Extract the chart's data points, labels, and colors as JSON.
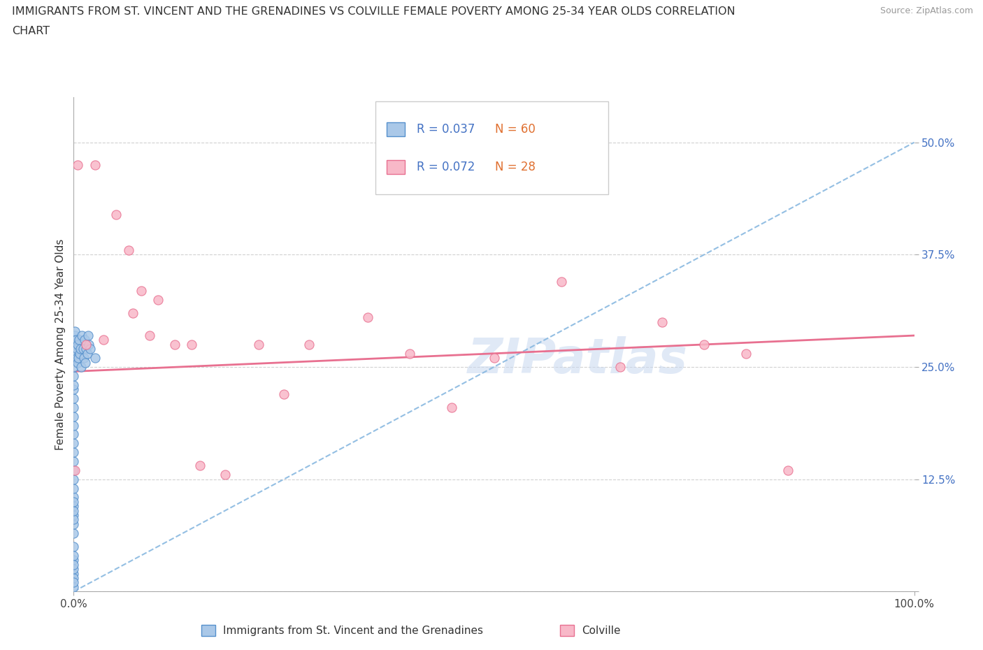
{
  "title_line1": "IMMIGRANTS FROM ST. VINCENT AND THE GRENADINES VS COLVILLE FEMALE POVERTY AMONG 25-34 YEAR OLDS CORRELATION",
  "title_line2": "CHART",
  "source": "Source: ZipAtlas.com",
  "ylabel": "Female Poverty Among 25-34 Year Olds",
  "xlim": [
    0,
    100
  ],
  "ylim": [
    0,
    55
  ],
  "blue_label": "Immigrants from St. Vincent and the Grenadines",
  "pink_label": "Colville",
  "legend_R_blue": "R = 0.037",
  "legend_N_blue": "N = 60",
  "legend_R_pink": "R = 0.072",
  "legend_N_pink": "N = 28",
  "blue_face_color": "#aac8e8",
  "blue_edge_color": "#5590cc",
  "pink_face_color": "#f8b8c8",
  "pink_edge_color": "#e87090",
  "blue_trend_color": "#88b8e0",
  "pink_trend_color": "#e87090",
  "R_color": "#4472c4",
  "N_color": "#e07030",
  "blue_x": [
    0.0,
    0.0,
    0.0,
    0.0,
    0.0,
    0.0,
    0.0,
    0.0,
    0.0,
    0.0,
    0.0,
    0.0,
    0.0,
    0.0,
    0.0,
    0.0,
    0.0,
    0.0,
    0.0,
    0.0,
    0.0,
    0.0,
    0.0,
    0.0,
    0.0,
    0.0,
    0.0,
    0.0,
    0.0,
    0.0,
    0.0,
    0.0,
    0.0,
    0.0,
    0.0,
    0.15,
    0.15,
    0.2,
    0.25,
    0.3,
    0.35,
    0.4,
    0.45,
    0.5,
    0.55,
    0.6,
    0.7,
    0.8,
    0.9,
    1.0,
    1.1,
    1.2,
    1.3,
    1.4,
    1.5,
    1.6,
    1.7,
    1.8,
    2.0,
    2.5
  ],
  "blue_y": [
    2.0,
    3.5,
    5.0,
    6.5,
    7.5,
    8.5,
    9.5,
    10.5,
    11.5,
    12.5,
    13.5,
    14.5,
    15.5,
    16.5,
    17.5,
    18.5,
    19.5,
    20.5,
    21.5,
    22.5,
    23.0,
    24.0,
    1.5,
    2.5,
    4.0,
    25.0,
    26.0,
    27.0,
    28.0,
    0.5,
    1.0,
    3.0,
    8.0,
    9.0,
    10.0,
    28.5,
    29.0,
    27.5,
    26.5,
    28.0,
    26.0,
    27.0,
    25.5,
    27.5,
    26.0,
    28.0,
    26.5,
    27.0,
    25.0,
    28.5,
    27.0,
    26.0,
    28.0,
    25.5,
    27.0,
    26.5,
    28.5,
    27.5,
    27.0,
    26.0
  ],
  "pink_x": [
    0.5,
    2.5,
    5.0,
    6.5,
    8.0,
    10.0,
    12.0,
    14.0,
    18.0,
    22.0,
    28.0,
    35.0,
    40.0,
    50.0,
    58.0,
    65.0,
    70.0,
    75.0,
    80.0,
    85.0,
    0.1,
    1.5,
    3.5,
    7.0,
    9.0,
    15.0,
    25.0,
    45.0
  ],
  "pink_y": [
    47.5,
    47.5,
    42.0,
    38.0,
    33.5,
    32.5,
    27.5,
    27.5,
    13.0,
    27.5,
    27.5,
    30.5,
    26.5,
    26.0,
    34.5,
    25.0,
    30.0,
    27.5,
    26.5,
    13.5,
    13.5,
    27.5,
    28.0,
    31.0,
    28.5,
    14.0,
    22.0,
    20.5
  ],
  "blue_trend_x": [
    0,
    100
  ],
  "blue_trend_y": [
    0,
    50
  ],
  "pink_trend_x": [
    0,
    100
  ],
  "pink_trend_y": [
    24.5,
    28.5
  ],
  "ytick_positions": [
    0,
    12.5,
    25.0,
    37.5,
    50.0
  ],
  "ytick_labels": [
    "",
    "12.5%",
    "25.0%",
    "37.5%",
    "50.0%"
  ],
  "xtick_positions": [
    0,
    100
  ],
  "xtick_labels": [
    "0.0%",
    "100.0%"
  ],
  "grid_color": "#cccccc",
  "watermark_color": "#c8d8f0"
}
